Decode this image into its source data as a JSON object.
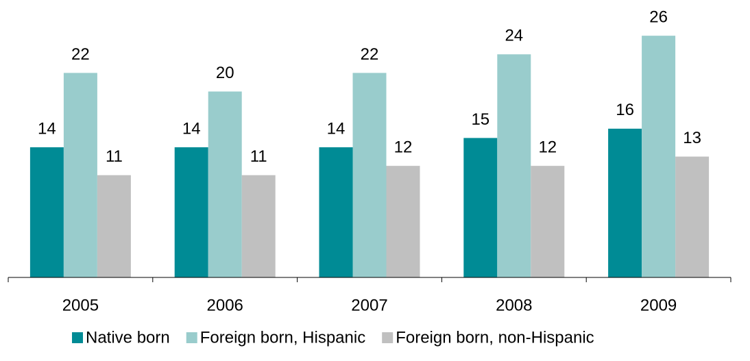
{
  "chart_data": {
    "type": "bar",
    "categories": [
      "2005",
      "2006",
      "2007",
      "2008",
      "2009"
    ],
    "series": [
      {
        "name": "Native born",
        "color": "#008b95",
        "values": [
          14,
          14,
          14,
          15,
          16
        ]
      },
      {
        "name": "Foreign born, Hispanic",
        "color": "#99cccc",
        "values": [
          22,
          20,
          22,
          24,
          26
        ]
      },
      {
        "name": "Foreign born, non-Hispanic",
        "color": "#c0c0c0",
        "values": [
          11,
          11,
          12,
          12,
          13
        ]
      }
    ],
    "ylim": [
      0,
      28
    ]
  }
}
